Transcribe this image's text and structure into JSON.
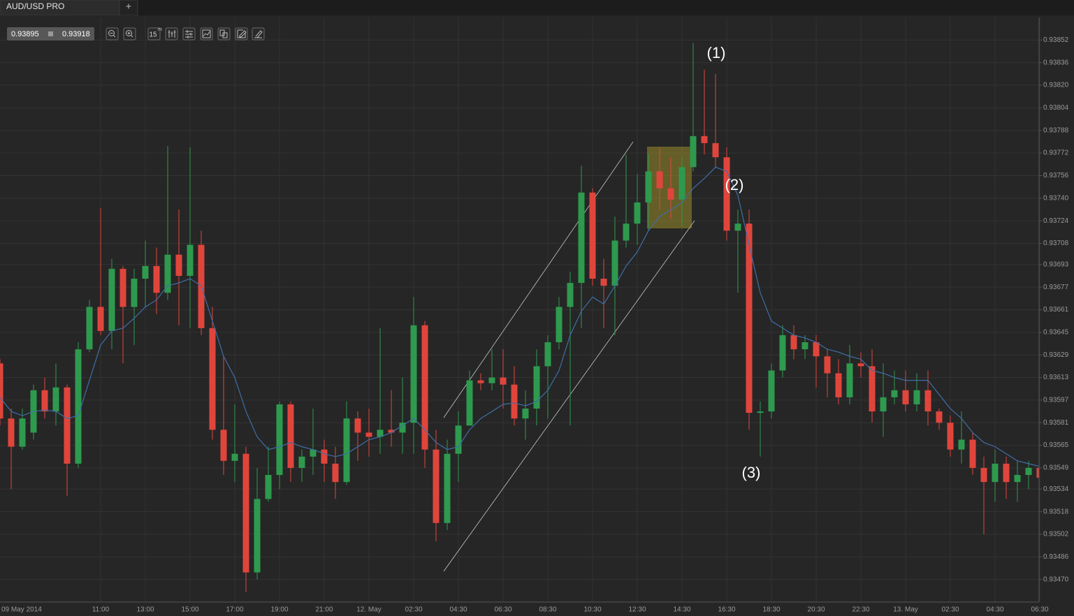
{
  "header": {
    "tab": "AUD/USD PRO",
    "new_tab": "+"
  },
  "quote": {
    "bid": 0.93895,
    "ask": 0.93918
  },
  "toolbar": {
    "timeframe": 15,
    "timeframe_unit": "m"
  },
  "chart_data": {
    "type": "candlestick",
    "categories": [
      "09 May 2014",
      null,
      null,
      null,
      null,
      null,
      null,
      null,
      null,
      "11:00",
      null,
      null,
      null,
      "13:00",
      null,
      null,
      null,
      "15:00",
      null,
      null,
      null,
      "17:00",
      null,
      null,
      null,
      "19:00",
      null,
      null,
      null,
      "21:00",
      null,
      null,
      null,
      "12. May",
      null,
      null,
      null,
      "02:30",
      null,
      null,
      null,
      "04:30",
      null,
      null,
      null,
      "06:30",
      null,
      null,
      null,
      "08:30",
      null,
      null,
      null,
      "10:30",
      null,
      null,
      null,
      "12:30",
      null,
      null,
      null,
      "14:30",
      null,
      null,
      null,
      "16:30",
      null,
      null,
      null,
      "18:30",
      null,
      null,
      null,
      "20:30",
      null,
      null,
      null,
      "22:30",
      null,
      null,
      null,
      "13. May",
      null,
      null,
      null,
      "02:30",
      null,
      null,
      null,
      "04:30",
      null,
      null,
      null,
      "06:30"
    ],
    "ohlc": [
      [
        0.93623,
        0.93626,
        0.93579,
        0.93584
      ],
      [
        0.93584,
        0.93591,
        0.93534,
        0.93564
      ],
      [
        0.93564,
        0.93591,
        0.93562,
        0.93584
      ],
      [
        0.93574,
        0.93608,
        0.93569,
        0.93604
      ],
      [
        0.93604,
        0.93613,
        0.93584,
        0.93589
      ],
      [
        0.93589,
        0.93623,
        0.93579,
        0.93606
      ],
      [
        0.93606,
        0.93608,
        0.93529,
        0.93552
      ],
      [
        0.93552,
        0.93638,
        0.93549,
        0.93633
      ],
      [
        0.93633,
        0.93668,
        0.93631,
        0.93663
      ],
      [
        0.93663,
        0.93733,
        0.93643,
        0.93646
      ],
      [
        0.93646,
        0.93697,
        0.93633,
        0.9369
      ],
      [
        0.9369,
        0.93692,
        0.93623,
        0.93663
      ],
      [
        0.93663,
        0.9369,
        0.93636,
        0.93683
      ],
      [
        0.93683,
        0.9371,
        0.93663,
        0.93692
      ],
      [
        0.93692,
        0.93705,
        0.93658,
        0.93673
      ],
      [
        0.93673,
        0.93777,
        0.93668,
        0.937
      ],
      [
        0.937,
        0.93732,
        0.9365,
        0.93685
      ],
      [
        0.93685,
        0.93776,
        0.93648,
        0.93707
      ],
      [
        0.93707,
        0.93717,
        0.93643,
        0.93648
      ],
      [
        0.93648,
        0.93663,
        0.93569,
        0.93576
      ],
      [
        0.93576,
        0.93628,
        0.93544,
        0.93554
      ],
      [
        0.93554,
        0.93594,
        0.93539,
        0.93559
      ],
      [
        0.93559,
        0.93564,
        0.93461,
        0.93475
      ],
      [
        0.93475,
        0.93549,
        0.9347,
        0.93527
      ],
      [
        0.93527,
        0.93564,
        0.93525,
        0.93544
      ],
      [
        0.93544,
        0.93596,
        0.93534,
        0.93594
      ],
      [
        0.93594,
        0.93596,
        0.93539,
        0.93549
      ],
      [
        0.93549,
        0.93562,
        0.93539,
        0.93557
      ],
      [
        0.93557,
        0.93591,
        0.93544,
        0.93562
      ],
      [
        0.93562,
        0.93569,
        0.93539,
        0.93552
      ],
      [
        0.93552,
        0.93564,
        0.93527,
        0.93539
      ],
      [
        0.93539,
        0.93596,
        0.93537,
        0.93584
      ],
      [
        0.93584,
        0.93589,
        0.93554,
        0.93574
      ],
      [
        0.93574,
        0.93591,
        0.93557,
        0.93571
      ],
      [
        0.93571,
        0.93648,
        0.93559,
        0.93576
      ],
      [
        0.93576,
        0.93604,
        0.93564,
        0.93574
      ],
      [
        0.93574,
        0.93613,
        0.93559,
        0.93581
      ],
      [
        0.93581,
        0.9367,
        0.93559,
        0.9365
      ],
      [
        0.9365,
        0.93653,
        0.93549,
        0.93562
      ],
      [
        0.93562,
        0.93576,
        0.93497,
        0.9351
      ],
      [
        0.9351,
        0.93569,
        0.93505,
        0.93559
      ],
      [
        0.93559,
        0.93589,
        0.93539,
        0.93579
      ],
      [
        0.93579,
        0.93618,
        0.93579,
        0.93611
      ],
      [
        0.93611,
        0.93616,
        0.93604,
        0.93609
      ],
      [
        0.93609,
        0.93633,
        0.93604,
        0.93613
      ],
      [
        0.93613,
        0.93633,
        0.93591,
        0.93608
      ],
      [
        0.93608,
        0.93621,
        0.93579,
        0.93584
      ],
      [
        0.93584,
        0.93604,
        0.93569,
        0.93591
      ],
      [
        0.93591,
        0.93633,
        0.93579,
        0.93621
      ],
      [
        0.93621,
        0.93643,
        0.93584,
        0.93638
      ],
      [
        0.93638,
        0.9367,
        0.93633,
        0.93663
      ],
      [
        0.93663,
        0.93688,
        0.93579,
        0.9368
      ],
      [
        0.9368,
        0.93763,
        0.93648,
        0.93744
      ],
      [
        0.93744,
        0.93747,
        0.93678,
        0.93683
      ],
      [
        0.93683,
        0.93697,
        0.93648,
        0.93678
      ],
      [
        0.93678,
        0.93727,
        0.93643,
        0.9371
      ],
      [
        0.9371,
        0.93771,
        0.93705,
        0.93722
      ],
      [
        0.93722,
        0.93757,
        0.93707,
        0.93737
      ],
      [
        0.93737,
        0.93771,
        0.93717,
        0.93759
      ],
      [
        0.93759,
        0.93776,
        0.93732,
        0.93747
      ],
      [
        0.93747,
        0.93769,
        0.93725,
        0.93739
      ],
      [
        0.93739,
        0.93769,
        0.9372,
        0.93762
      ],
      [
        0.93762,
        0.9385,
        0.93759,
        0.93784
      ],
      [
        0.93784,
        0.93831,
        0.93771,
        0.93779
      ],
      [
        0.93779,
        0.93828,
        0.93762,
        0.93769
      ],
      [
        0.93769,
        0.93776,
        0.9371,
        0.93717
      ],
      [
        0.93717,
        0.93732,
        0.93673,
        0.93722
      ],
      [
        0.93722,
        0.93732,
        0.93576,
        0.93588
      ],
      [
        0.93588,
        0.93596,
        0.93557,
        0.93589
      ],
      [
        0.93589,
        0.93623,
        0.93584,
        0.93618
      ],
      [
        0.93618,
        0.9365,
        0.93613,
        0.93643
      ],
      [
        0.93643,
        0.9365,
        0.93626,
        0.93633
      ],
      [
        0.93633,
        0.93643,
        0.93626,
        0.93638
      ],
      [
        0.93638,
        0.93643,
        0.93606,
        0.93628
      ],
      [
        0.93628,
        0.93633,
        0.93599,
        0.93616
      ],
      [
        0.93616,
        0.93626,
        0.93594,
        0.93599
      ],
      [
        0.93599,
        0.93636,
        0.93594,
        0.93623
      ],
      [
        0.93623,
        0.93631,
        0.93613,
        0.93621
      ],
      [
        0.93621,
        0.93633,
        0.93581,
        0.93589
      ],
      [
        0.93589,
        0.93623,
        0.93571,
        0.93599
      ],
      [
        0.93599,
        0.93618,
        0.93594,
        0.93604
      ],
      [
        0.93604,
        0.93618,
        0.93589,
        0.93594
      ],
      [
        0.93594,
        0.93616,
        0.93589,
        0.93604
      ],
      [
        0.93604,
        0.93618,
        0.93579,
        0.93589
      ],
      [
        0.93589,
        0.93591,
        0.93576,
        0.93581
      ],
      [
        0.93581,
        0.93586,
        0.93557,
        0.93562
      ],
      [
        0.93562,
        0.93589,
        0.93552,
        0.93569
      ],
      [
        0.93569,
        0.93574,
        0.93544,
        0.93549
      ],
      [
        0.93549,
        0.93557,
        0.93502,
        0.93539
      ],
      [
        0.93539,
        0.93562,
        0.93525,
        0.93552
      ],
      [
        0.93552,
        0.93557,
        0.93527,
        0.93539
      ],
      [
        0.93539,
        0.93554,
        0.93525,
        0.93544
      ],
      [
        0.93544,
        0.93554,
        0.93534,
        0.93549
      ],
      [
        0.93549,
        0.93552,
        0.93534,
        0.93542
      ]
    ],
    "up_color": "#2e9a4e",
    "down_color": "#e0453c",
    "series": [
      {
        "color": "#3e6fa8",
        "values": [
          0.93599,
          0.93589,
          0.93586,
          0.93589,
          0.9359,
          0.93589,
          0.93584,
          0.93586,
          0.93611,
          0.93636,
          0.93646,
          0.93648,
          0.93655,
          0.93663,
          0.93668,
          0.93678,
          0.9368,
          0.93683,
          0.93678,
          0.93653,
          0.93628,
          0.93613,
          0.93589,
          0.93571,
          0.93562,
          0.93564,
          0.93567,
          0.93564,
          0.93562,
          0.93559,
          0.93557,
          0.93559,
          0.93564,
          0.93569,
          0.93571,
          0.93574,
          0.93579,
          0.93584,
          0.93576,
          0.93567,
          0.93562,
          0.93564,
          0.93576,
          0.93584,
          0.93589,
          0.93594,
          0.93595,
          0.93593,
          0.93596,
          0.93604,
          0.93618,
          0.93643,
          0.9366,
          0.9367,
          0.93665,
          0.93678,
          0.93692,
          0.93702,
          0.93717,
          0.93727,
          0.93732,
          0.93737,
          0.93747,
          0.93754,
          0.93762,
          0.93759,
          0.93742,
          0.93707,
          0.93673,
          0.93653,
          0.93648,
          0.93643,
          0.93641,
          0.93638,
          0.93633,
          0.93631,
          0.93628,
          0.93626,
          0.93618,
          0.93616,
          0.93613,
          0.93611,
          0.93611,
          0.93611,
          0.93601,
          0.93591,
          0.93584,
          0.93574,
          0.93567,
          0.93564,
          0.93559,
          0.93554,
          0.93552,
          0.9355
        ]
      }
    ],
    "ylim": [
      0.93455,
      0.93868
    ],
    "yticks": [
      0.93852,
      0.93836,
      {
        "value": 0.9382,
        "label": "0.93820"
      },
      0.93804,
      0.93788,
      0.93772,
      0.93756,
      {
        "value": 0.9374,
        "label": "0.93740"
      },
      0.93724,
      0.93708,
      0.93693,
      0.93677,
      0.93661,
      0.93645,
      0.93629,
      0.93613,
      0.93597,
      0.93581,
      0.93565,
      0.93549,
      0.93534,
      0.93518,
      0.93502,
      0.93486,
      {
        "value": 0.9347,
        "label": "0.93470"
      }
    ],
    "grid": true,
    "annotations": [
      "(1)",
      "(2)",
      "(3)"
    ]
  }
}
